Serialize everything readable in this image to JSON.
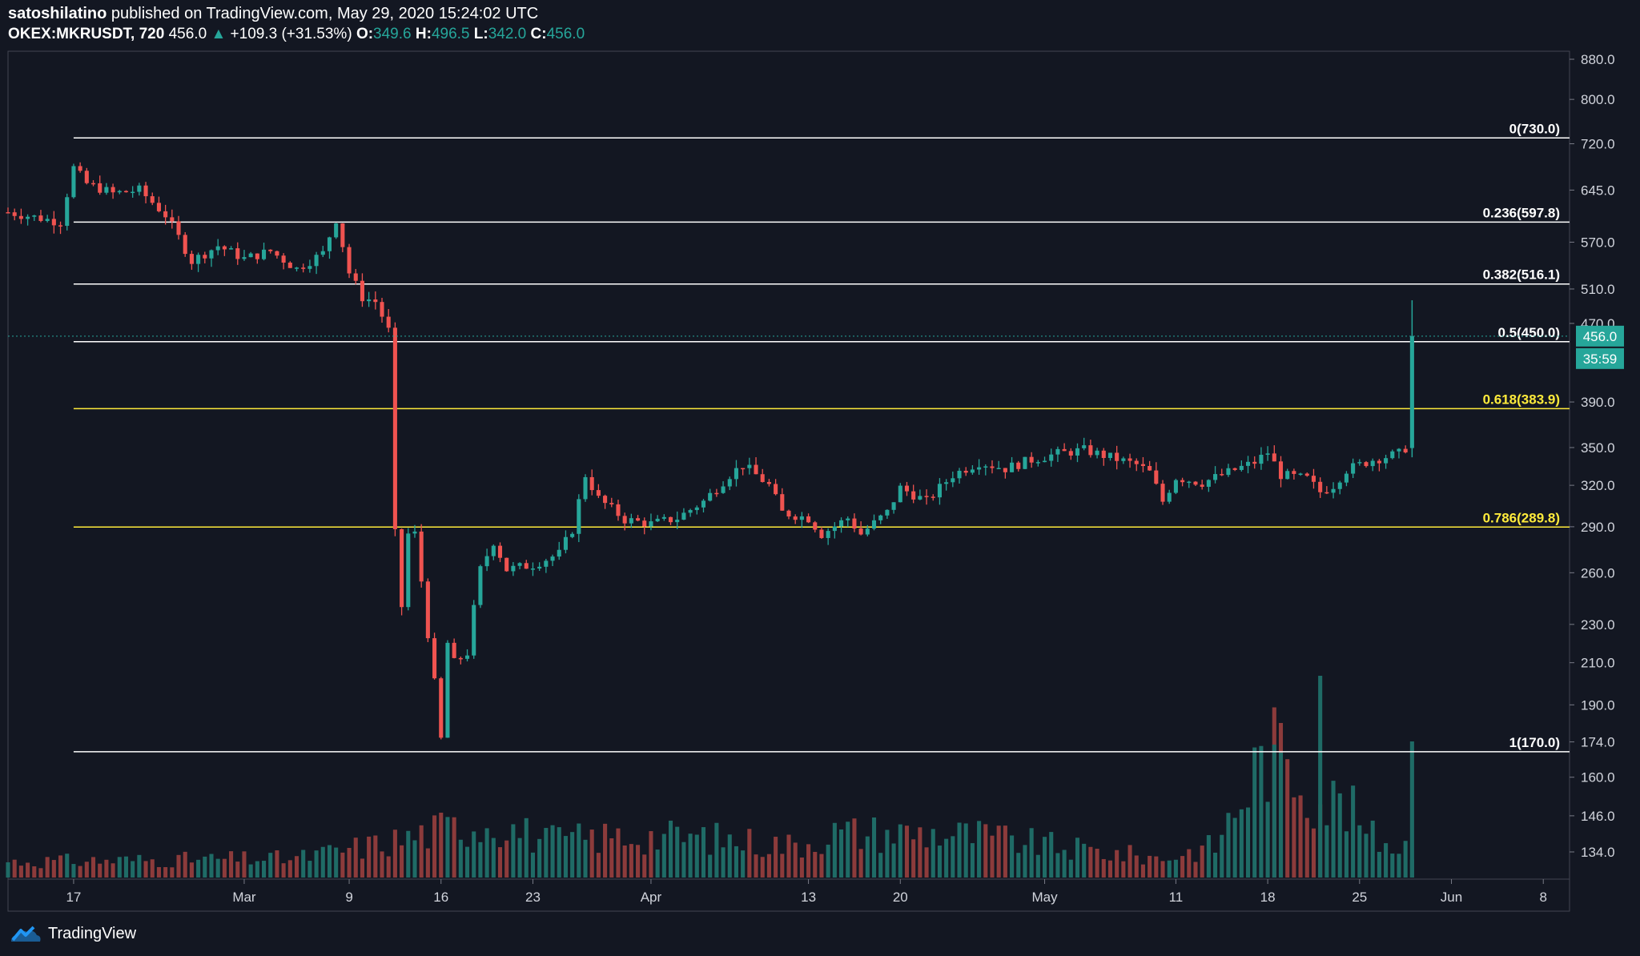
{
  "header": {
    "author": "satoshilatino",
    "published_text": "published on TradingView.com, May 29, 2020 15:24:02 UTC",
    "symbol": "OKEX:MKRUSDT, 720",
    "last": "456.0",
    "change": "+109.3 (+31.53%)",
    "o_label": "O:",
    "o_value": "349.6",
    "h_label": "H:",
    "h_value": "496.5",
    "l_label": "L:",
    "l_value": "342.0",
    "c_label": "C:",
    "c_value": "456.0"
  },
  "footer": {
    "brand": "TradingView"
  },
  "colors": {
    "background": "#131722",
    "bull": "#26a69a",
    "bear": "#ef5350",
    "bull_volume": "#1f6b66",
    "bear_volume": "#8c3b3b",
    "fib_white": "#ffffff",
    "fib_yellow": "#ffeb3b",
    "price_tag": "#26a69a"
  },
  "chart_data": {
    "type": "candlestick",
    "scale": "log",
    "ylim": [
      122,
      900
    ],
    "y_ticks": [
      "880.0",
      "800.0",
      "720.0",
      "645.0",
      "570.0",
      "510.0",
      "470.0",
      "390.0",
      "350.0",
      "320.0",
      "290.0",
      "260.0",
      "230.0",
      "210.0",
      "190.0",
      "174.0",
      "160.0",
      "146.0",
      "134.0"
    ],
    "x_ticks": [
      "17",
      "Mar",
      "9",
      "16",
      "23",
      "Apr",
      "13",
      "20",
      "May",
      "11",
      "18",
      "25",
      "Jun",
      "8"
    ],
    "x_tick_dates": [
      "2020-02-17",
      "2020-03-01",
      "2020-03-09",
      "2020-03-16",
      "2020-03-23",
      "2020-04-01",
      "2020-04-13",
      "2020-04-20",
      "2020-05-01",
      "2020-05-11",
      "2020-05-18",
      "2020-05-25",
      "2020-06-01",
      "2020-06-08"
    ],
    "interval_hours": 12,
    "x_range": [
      "2020-02-12",
      "2020-06-10"
    ],
    "last_price_label": "456.0",
    "countdown_label": "35:59",
    "fib_levels": [
      {
        "label": "0(730.0)",
        "value": 730.0,
        "color": "white"
      },
      {
        "label": "0.236(597.8)",
        "value": 597.8,
        "color": "white"
      },
      {
        "label": "0.382(516.1)",
        "value": 516.1,
        "color": "white"
      },
      {
        "label": "0.5(450.0)",
        "value": 450.0,
        "color": "white"
      },
      {
        "label": "0.618(383.9)",
        "value": 383.9,
        "color": "yellow"
      },
      {
        "label": "0.786(289.8)",
        "value": 289.8,
        "color": "yellow"
      },
      {
        "label": "1(170.0)",
        "value": 170.0,
        "color": "white"
      }
    ],
    "fib_start_date": "2020-02-17",
    "close_path": [
      [
        "2020-02-12",
        612
      ],
      [
        "2020-02-14",
        605
      ],
      [
        "2020-02-16",
        598
      ],
      [
        "2020-02-17",
        680
      ],
      [
        "2020-02-18",
        655
      ],
      [
        "2020-02-20",
        640
      ],
      [
        "2020-02-22",
        645
      ],
      [
        "2020-02-24",
        608
      ],
      [
        "2020-02-26",
        545
      ],
      [
        "2020-02-28",
        565
      ],
      [
        "2020-03-01",
        548
      ],
      [
        "2020-03-03",
        558
      ],
      [
        "2020-03-05",
        535
      ],
      [
        "2020-03-07",
        555
      ],
      [
        "2020-03-08",
        602
      ],
      [
        "2020-03-09",
        530
      ],
      [
        "2020-03-10",
        500
      ],
      [
        "2020-03-11",
        495
      ],
      [
        "2020-03-12",
        462
      ],
      [
        "2020-03-12T12",
        285
      ],
      [
        "2020-03-13",
        240
      ],
      [
        "2020-03-13T12",
        285
      ],
      [
        "2020-03-14",
        285
      ],
      [
        "2020-03-15",
        225
      ],
      [
        "2020-03-16",
        175
      ],
      [
        "2020-03-16T12",
        220
      ],
      [
        "2020-03-17",
        210
      ],
      [
        "2020-03-18",
        215
      ],
      [
        "2020-03-19",
        262
      ],
      [
        "2020-03-20",
        280
      ],
      [
        "2020-03-21",
        262
      ],
      [
        "2020-03-23",
        265
      ],
      [
        "2020-03-25",
        272
      ],
      [
        "2020-03-26",
        288
      ],
      [
        "2020-03-27",
        328
      ],
      [
        "2020-03-28",
        310
      ],
      [
        "2020-03-30",
        295
      ],
      [
        "2020-04-01",
        292
      ],
      [
        "2020-04-03",
        296
      ],
      [
        "2020-04-05",
        308
      ],
      [
        "2020-04-07",
        328
      ],
      [
        "2020-04-08",
        336
      ],
      [
        "2020-04-10",
        320
      ],
      [
        "2020-04-11",
        300
      ],
      [
        "2020-04-13",
        296
      ],
      [
        "2020-04-14",
        285
      ],
      [
        "2020-04-16",
        296
      ],
      [
        "2020-04-17",
        285
      ],
      [
        "2020-04-19",
        300
      ],
      [
        "2020-04-20",
        318
      ],
      [
        "2020-04-22",
        308
      ],
      [
        "2020-04-24",
        328
      ],
      [
        "2020-04-26",
        338
      ],
      [
        "2020-04-28",
        333
      ],
      [
        "2020-04-30",
        340
      ],
      [
        "2020-05-02",
        345
      ],
      [
        "2020-05-04",
        348
      ],
      [
        "2020-05-06",
        342
      ],
      [
        "2020-05-08",
        336
      ],
      [
        "2020-05-09",
        330
      ],
      [
        "2020-05-10",
        308
      ],
      [
        "2020-05-11",
        326
      ],
      [
        "2020-05-13",
        322
      ],
      [
        "2020-05-15",
        330
      ],
      [
        "2020-05-17",
        338
      ],
      [
        "2020-05-18",
        346
      ],
      [
        "2020-05-19",
        328
      ],
      [
        "2020-05-21",
        325
      ],
      [
        "2020-05-22",
        315
      ],
      [
        "2020-05-23",
        320
      ],
      [
        "2020-05-24",
        332
      ],
      [
        "2020-05-26",
        340
      ],
      [
        "2020-05-28",
        345
      ],
      [
        "2020-05-28T12",
        349.6
      ],
      [
        "2020-05-29",
        456
      ]
    ],
    "last_candle": {
      "date": "2020-05-29",
      "open": 349.6,
      "high": 496.5,
      "low": 342.0,
      "close": 456.0
    },
    "volume_profile": [
      [
        "2020-02-12",
        1.0
      ],
      [
        "2020-03-05",
        1.2
      ],
      [
        "2020-03-12",
        2.2
      ],
      [
        "2020-03-16",
        3.0
      ],
      [
        "2020-03-20",
        3.5
      ],
      [
        "2020-03-24",
        2.3
      ],
      [
        "2020-03-30",
        2.6
      ],
      [
        "2020-04-05",
        2.5
      ],
      [
        "2020-04-12",
        2.0
      ],
      [
        "2020-04-15",
        2.8
      ],
      [
        "2020-04-22",
        2.8
      ],
      [
        "2020-04-26",
        2.6
      ],
      [
        "2020-05-03",
        1.8
      ],
      [
        "2020-05-10",
        1.2
      ],
      [
        "2020-05-14",
        2.0
      ],
      [
        "2020-05-16",
        5.0
      ],
      [
        "2020-05-18",
        8.0
      ],
      [
        "2020-05-20",
        7.0
      ],
      [
        "2020-05-22",
        5.0
      ],
      [
        "2020-05-24",
        4.5
      ],
      [
        "2020-05-26",
        2.5
      ],
      [
        "2020-05-28",
        2.0
      ]
    ],
    "volume_spikes": [
      [
        "2020-05-18T12",
        8.3
      ],
      [
        "2020-05-19",
        7.8
      ],
      [
        "2020-05-22",
        12.6
      ],
      [
        "2020-05-29",
        8.5
      ]
    ],
    "volume_max": 13.0
  }
}
